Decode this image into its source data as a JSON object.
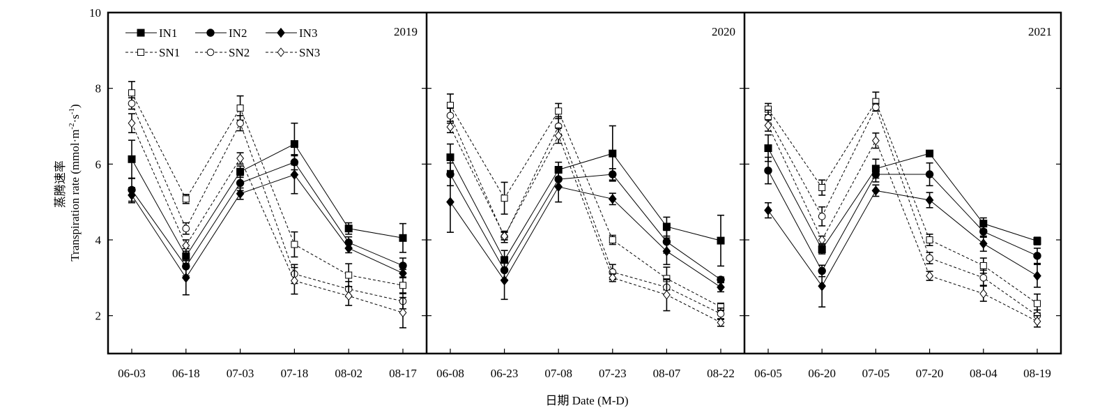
{
  "chart_data": {
    "type": "line",
    "ylabel_cn": "蒸腾速率",
    "ylabel_en": "Transpiration rate (mmol·m",
    "ylabel_sup1": "-2",
    "ylabel_mid": "·s",
    "ylabel_sup2": "-1",
    "ylabel_end": ")",
    "xlabel": "日期 Date (M-D)",
    "ylim": [
      1,
      10
    ],
    "yticks": [
      "2",
      "4",
      "6",
      "8",
      "10"
    ],
    "legend": [
      {
        "name": "IN1",
        "marker": "square",
        "filled": true,
        "dashed": false
      },
      {
        "name": "IN2",
        "marker": "circle",
        "filled": true,
        "dashed": false
      },
      {
        "name": "IN3",
        "marker": "diamond",
        "filled": true,
        "dashed": false
      },
      {
        "name": "SN1",
        "marker": "square",
        "filled": false,
        "dashed": true
      },
      {
        "name": "SN2",
        "marker": "circle",
        "filled": false,
        "dashed": true
      },
      {
        "name": "SN3",
        "marker": "diamond",
        "filled": false,
        "dashed": true
      }
    ],
    "panels": [
      {
        "year": "2019",
        "categories": [
          "06-03",
          "06-18",
          "07-03",
          "07-18",
          "08-02",
          "08-17"
        ],
        "series": [
          {
            "name": "IN1",
            "values": [
              6.13,
              3.57,
              5.8,
              6.53,
              4.3,
              4.05
            ],
            "errors": [
              0.5,
              0.2,
              0.15,
              0.55,
              0.15,
              0.38
            ]
          },
          {
            "name": "IN2",
            "values": [
              5.32,
              3.3,
              5.5,
              6.05,
              3.93,
              3.32
            ],
            "errors": [
              0.3,
              0.25,
              0.2,
              0.2,
              0.15,
              0.2
            ]
          },
          {
            "name": "IN3",
            "values": [
              5.18,
              3.0,
              5.22,
              5.72,
              3.78,
              3.12
            ],
            "errors": [
              0.2,
              0.45,
              0.15,
              0.5,
              0.12,
              0.1
            ]
          },
          {
            "name": "SN1",
            "values": [
              7.88,
              5.08,
              7.48,
              3.88,
              3.07,
              2.8
            ],
            "errors": [
              0.3,
              0.12,
              0.32,
              0.33,
              0.3,
              0.2
            ]
          },
          {
            "name": "SN2",
            "values": [
              7.6,
              4.3,
              7.08,
              3.1,
              2.7,
              2.38
            ],
            "errors": [
              0.15,
              0.15,
              0.2,
              0.25,
              0.2,
              0.2
            ]
          },
          {
            "name": "SN3",
            "values": [
              7.08,
              3.85,
              6.15,
              2.92,
              2.52,
              2.08
            ],
            "errors": [
              0.25,
              0.15,
              0.15,
              0.35,
              0.25,
              0.4
            ]
          }
        ]
      },
      {
        "year": "2020",
        "categories": [
          "06-08",
          "06-23",
          "07-08",
          "07-23",
          "08-07",
          "08-22"
        ],
        "series": [
          {
            "name": "IN1",
            "values": [
              6.18,
              3.47,
              5.85,
              6.28,
              4.35,
              3.98
            ],
            "errors": [
              0.35,
              0.25,
              0.2,
              0.73,
              0.25,
              0.67
            ]
          },
          {
            "name": "IN2",
            "values": [
              5.73,
              3.2,
              5.6,
              5.73,
              3.95,
              2.95
            ],
            "errors": [
              0.3,
              0.25,
              0.2,
              0.15,
              0.3,
              0.07
            ]
          },
          {
            "name": "IN3",
            "values": [
              5.0,
              2.93,
              5.4,
              5.08,
              3.7,
              2.75
            ],
            "errors": [
              0.8,
              0.5,
              0.4,
              0.15,
              0.35,
              0.12
            ]
          },
          {
            "name": "SN1",
            "values": [
              7.55,
              5.1,
              7.4,
              4.0,
              2.98,
              2.23
            ],
            "errors": [
              0.3,
              0.42,
              0.2,
              0.12,
              0.3,
              0.1
            ]
          },
          {
            "name": "SN2",
            "values": [
              7.28,
              4.08,
              7.0,
              3.15,
              2.75,
              2.05
            ],
            "errors": [
              0.2,
              0.15,
              0.25,
              0.2,
              0.2,
              0.15
            ]
          },
          {
            "name": "SN3",
            "values": [
              6.98,
              4.1,
              6.75,
              3.0,
              2.55,
              1.82
            ],
            "errors": [
              0.15,
              0.1,
              0.2,
              0.1,
              0.42,
              0.1
            ]
          }
        ]
      },
      {
        "year": "2021",
        "categories": [
          "06-05",
          "06-20",
          "07-05",
          "07-20",
          "08-04",
          "08-19"
        ],
        "series": [
          {
            "name": "IN1",
            "values": [
              6.42,
              3.75,
              5.88,
              6.28,
              4.43,
              3.97
            ],
            "errors": [
              0.35,
              0.12,
              0.25,
              0.07,
              0.15,
              0.1
            ]
          },
          {
            "name": "IN2",
            "values": [
              5.83,
              3.18,
              5.73,
              5.73,
              4.22,
              3.58
            ],
            "errors": [
              0.35,
              0.15,
              0.2,
              0.3,
              0.15,
              0.2
            ]
          },
          {
            "name": "IN3",
            "values": [
              4.78,
              2.78,
              5.3,
              5.05,
              3.9,
              3.05
            ],
            "errors": [
              0.2,
              0.55,
              0.15,
              0.2,
              0.2,
              0.3
            ]
          },
          {
            "name": "SN1",
            "values": [
              7.45,
              5.38,
              7.65,
              4.0,
              3.32,
              2.32
            ],
            "errors": [
              0.15,
              0.2,
              0.25,
              0.15,
              0.2,
              0.25
            ]
          },
          {
            "name": "SN2",
            "values": [
              7.22,
              4.62,
              7.5,
              3.52,
              3.0,
              2.0
            ],
            "errors": [
              0.2,
              0.25,
              0.1,
              0.15,
              0.2,
              0.15
            ]
          },
          {
            "name": "SN3",
            "values": [
              7.02,
              4.0,
              6.62,
              3.05,
              2.58,
              1.85
            ],
            "errors": [
              0.15,
              0.1,
              0.2,
              0.12,
              0.2,
              0.15
            ]
          }
        ]
      }
    ]
  }
}
